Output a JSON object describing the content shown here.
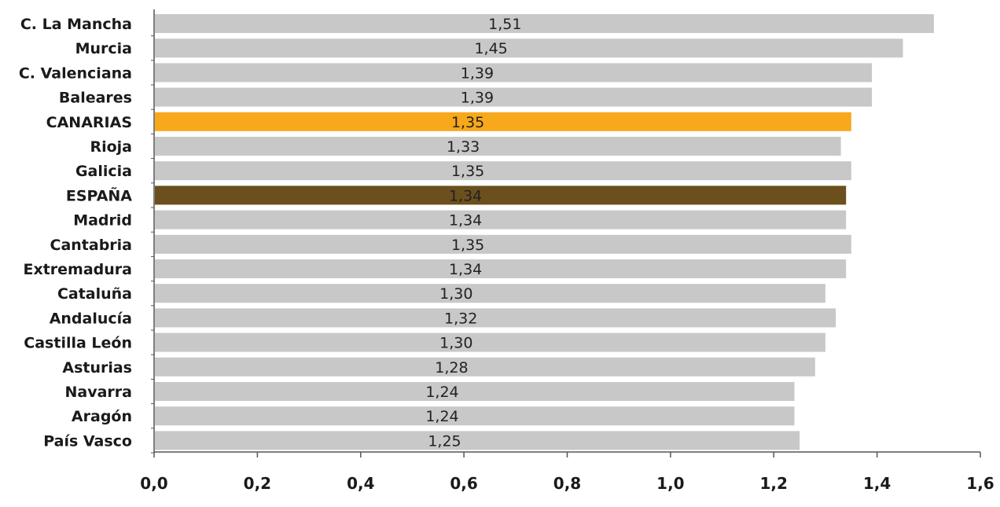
{
  "chart_data": {
    "type": "bar",
    "orientation": "horizontal",
    "categories": [
      "C. La Mancha",
      "Murcia",
      "C. Valenciana",
      "Baleares",
      "CANARIAS",
      "Rioja",
      "Galicia",
      "ESPAÑA",
      "Madrid",
      "Cantabria",
      "Extremadura",
      "Cataluña",
      "Andalucía",
      "Castilla León",
      "Asturias",
      "Navarra",
      "Aragón",
      "País Vasco"
    ],
    "values": [
      1.51,
      1.45,
      1.39,
      1.39,
      1.35,
      1.33,
      1.35,
      1.34,
      1.34,
      1.35,
      1.34,
      1.3,
      1.32,
      1.3,
      1.28,
      1.24,
      1.24,
      1.25
    ],
    "value_labels": [
      "1,51",
      "1,45",
      "1,39",
      "1,39",
      "1,35",
      "1,33",
      "1,35",
      "1,34",
      "1,34",
      "1,35",
      "1,34",
      "1,30",
      "1,32",
      "1,30",
      "1,28",
      "1,24",
      "1,24",
      "1,25"
    ],
    "xlim": [
      0,
      1.6
    ],
    "xticks": [
      0.0,
      0.2,
      0.4,
      0.6,
      0.8,
      1.0,
      1.2,
      1.4,
      1.6
    ],
    "xtick_labels": [
      "0,0",
      "0,2",
      "0,4",
      "0,6",
      "0,8",
      "1,0",
      "1,2",
      "1,4",
      "1,6"
    ],
    "title": "",
    "xlabel": "",
    "ylabel": "",
    "grid": false,
    "colors": {
      "default": "#c8c8c8",
      "CANARIAS": "#f7a81b",
      "ESPAÑA": "#6b4f1d",
      "axis": "#555555"
    }
  }
}
